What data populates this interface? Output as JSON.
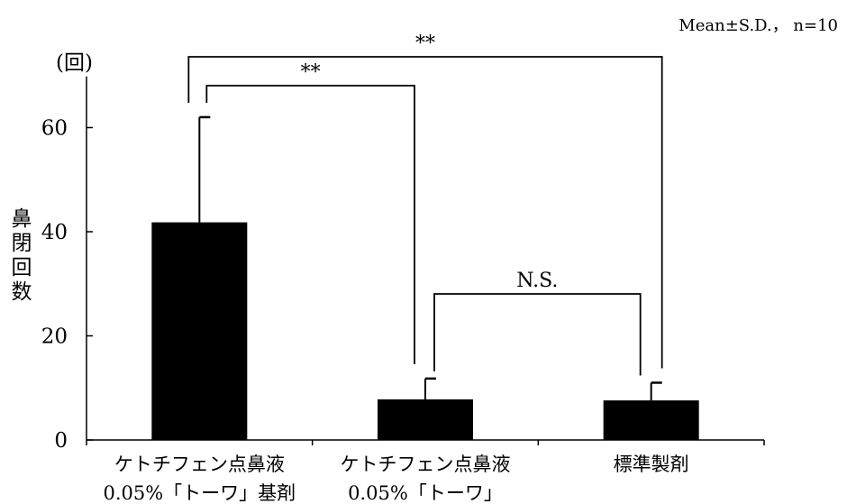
{
  "chart_data": {
    "type": "bar",
    "note": "Mean±S.D.， n=10",
    "unit_label": "(回)",
    "ylabel": "鼻閉回数",
    "ylim": [
      0,
      70
    ],
    "yticks": [
      0,
      20,
      40,
      60
    ],
    "grid": false,
    "categories": [
      [
        "ケトチフェン点鼻液",
        "0.05%「トーワ」基剤"
      ],
      [
        "ケトチフェン点鼻液",
        "0.05%「トーワ」"
      ],
      [
        "標準製剤"
      ]
    ],
    "values": [
      41.8,
      7.8,
      7.6
    ],
    "errors": [
      20.2,
      4.0,
      3.4
    ],
    "bar_color": "#000000",
    "significance": [
      {
        "from": 0,
        "to": 2,
        "label": "**"
      },
      {
        "from": 0,
        "to": 1,
        "label": "**"
      },
      {
        "from": 1,
        "to": 2,
        "label": "N.S."
      }
    ]
  }
}
